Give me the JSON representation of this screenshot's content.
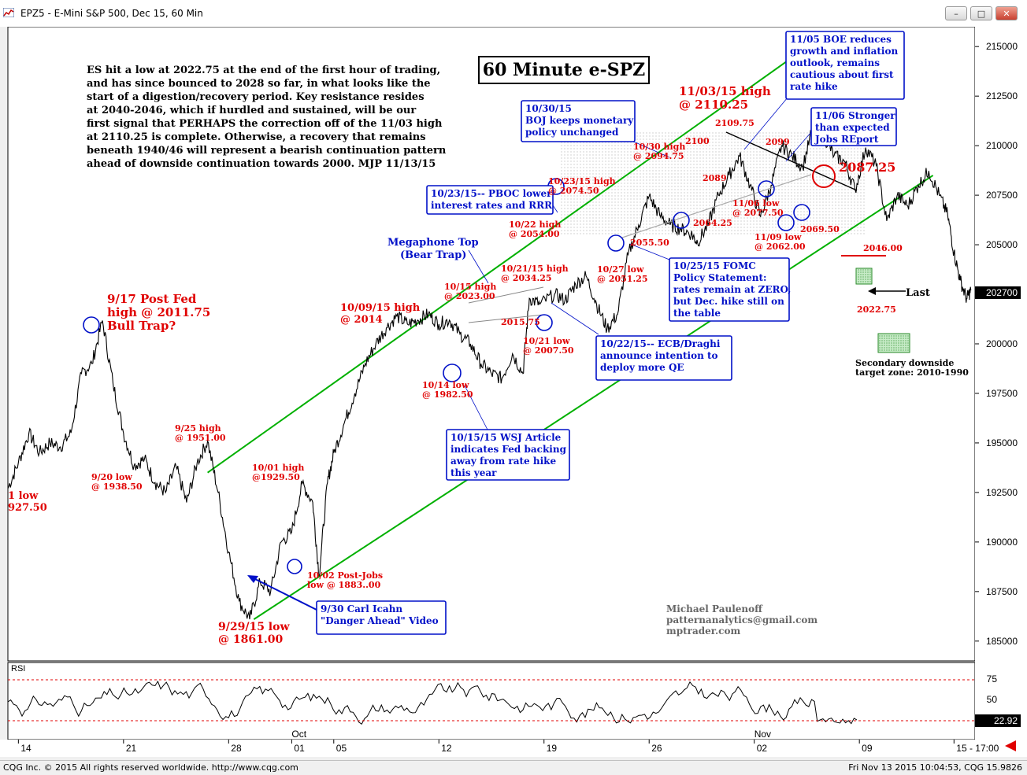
{
  "window": {
    "title": "EPZ5 - E-Mini S&P 500, Dec 15, 60 Min",
    "buttons": [
      "–",
      "□",
      "✕"
    ]
  },
  "status": {
    "left": "CQG Inc. © 2015 All rights reserved worldwide. http://www.cqg.com",
    "right": "Fri Nov 13 2015 10:04:53, CQG 15.9826"
  },
  "chart_data": {
    "type": "line",
    "title": "60 Minute e-SPZ",
    "commentary": [
      "ES hit a low at 2022.75 at the end of the first hour of trading,",
      "and has since bounced to 2028 so far, in what looks like the",
      "start of a digestion/recovery period. Key resistance resides",
      "at 2040-2046, which if hurdled and sustained, will be our",
      "first signal that PERHAPS the correction off of the 11/03 high",
      "at 2110.25 is complete. Otherwise, a recovery that remains",
      "beneath 1940/46 will represent a bearish continuation pattern",
      "ahead of downside continuation towards 2000. MJP 11/13/15"
    ],
    "ylim": [
      1840,
      2160
    ],
    "y_ticks": [
      215000,
      212500,
      210000,
      207500,
      205000,
      202500,
      200000,
      197500,
      195000,
      192500,
      190000,
      187500,
      185000
    ],
    "last_price_label": "202700",
    "x_ticks": [
      {
        "label": "14",
        "x": 0
      },
      {
        "label": "21",
        "x": 5
      },
      {
        "label": "28",
        "x": 10
      },
      {
        "label": "01",
        "x": 13
      },
      {
        "label": "05",
        "x": 15
      },
      {
        "label": "12",
        "x": 20
      },
      {
        "label": "19",
        "x": 25
      },
      {
        "label": "26",
        "x": 30
      },
      {
        "label": "02",
        "x": 35
      },
      {
        "label": "09",
        "x": 40
      },
      {
        "label": "15 - 17:00",
        "x": 44.5
      }
    ],
    "month_labels": [
      {
        "label": "Oct",
        "x": 13
      },
      {
        "label": "Nov",
        "x": 35
      }
    ],
    "x_domain": [
      -0.5,
      45.5
    ],
    "price_series": {
      "name": "",
      "points": [
        [
          -0.5,
          1927
        ],
        [
          0,
          1940
        ],
        [
          0.5,
          1955
        ],
        [
          1,
          1945
        ],
        [
          1.5,
          1950
        ],
        [
          2,
          1948
        ],
        [
          2.5,
          1955
        ],
        [
          3,
          1985
        ],
        [
          3.5,
          1990
        ],
        [
          4,
          2011.75
        ],
        [
          4.5,
          1980
        ],
        [
          5,
          1955
        ],
        [
          5.5,
          1938.5
        ],
        [
          6,
          1942
        ],
        [
          6.5,
          1930
        ],
        [
          7,
          1925
        ],
        [
          7.5,
          1938
        ],
        [
          8,
          1920
        ],
        [
          8.5,
          1940
        ],
        [
          9,
          1951
        ],
        [
          9.5,
          1925
        ],
        [
          10,
          1895
        ],
        [
          10.5,
          1870
        ],
        [
          11,
          1861
        ],
        [
          11.5,
          1880
        ],
        [
          12,
          1875
        ],
        [
          12.5,
          1900
        ],
        [
          13,
          1905
        ],
        [
          13.5,
          1929.5
        ],
        [
          14,
          1920
        ],
        [
          14.3,
          1883
        ],
        [
          14.7,
          1930
        ],
        [
          15,
          1945
        ],
        [
          15.5,
          1960
        ],
        [
          16,
          1975
        ],
        [
          16.5,
          1990
        ],
        [
          17,
          2000
        ],
        [
          17.5,
          2008
        ],
        [
          18,
          2014
        ],
        [
          18.5,
          2010
        ],
        [
          19,
          2012
        ],
        [
          19.5,
          2015
        ],
        [
          20,
          2010
        ],
        [
          20.5,
          2012
        ],
        [
          21,
          2005
        ],
        [
          21.5,
          2000
        ],
        [
          22,
          1990
        ],
        [
          22.5,
          1985
        ],
        [
          23,
          1982.5
        ],
        [
          23.5,
          1995
        ],
        [
          24,
          1985
        ],
        [
          24.3,
          2023
        ],
        [
          24.8,
          2020
        ],
        [
          25.5,
          2025
        ],
        [
          26,
          2022
        ],
        [
          26.5,
          2030
        ],
        [
          27,
          2034.25
        ],
        [
          27.5,
          2020
        ],
        [
          28,
          2007.5
        ],
        [
          28.5,
          2015
        ],
        [
          29,
          2045
        ],
        [
          29.5,
          2060
        ],
        [
          30,
          2074.5
        ],
        [
          30.5,
          2065
        ],
        [
          31,
          2060
        ],
        [
          31.5,
          2058
        ],
        [
          32,
          2055.5
        ],
        [
          32.3,
          2051.25
        ],
        [
          32.8,
          2060
        ],
        [
          33.3,
          2075
        ],
        [
          33.8,
          2085
        ],
        [
          34.3,
          2094.75
        ],
        [
          34.8,
          2080
        ],
        [
          35.3,
          2064.25
        ],
        [
          35.8,
          2080
        ],
        [
          36.3,
          2100
        ],
        [
          36.8,
          2095
        ],
        [
          37.3,
          2089
        ],
        [
          37.8,
          2109.75
        ],
        [
          38.3,
          2105
        ],
        [
          38.8,
          2095
        ],
        [
          39.3,
          2092
        ],
        [
          39.8,
          2077.5
        ],
        [
          40.3,
          2099
        ],
        [
          40.8,
          2090
        ],
        [
          41.3,
          2062
        ],
        [
          41.8,
          2075
        ],
        [
          42.3,
          2069.5
        ],
        [
          42.8,
          2080
        ],
        [
          43.3,
          2087.25
        ],
        [
          43.8,
          2075
        ],
        [
          44.2,
          2065
        ],
        [
          44.5,
          2046
        ],
        [
          44.8,
          2032
        ],
        [
          45.1,
          2022.75
        ],
        [
          45.3,
          2027
        ]
      ]
    },
    "rsi": {
      "label": "RSI",
      "levels": [
        "75",
        "50"
      ],
      "last_value": "22.92",
      "ylim": [
        0,
        100
      ]
    },
    "channel_lines": [
      {
        "name": "upper-channel",
        "from": [
          9,
          1935
        ],
        "to": [
          38.2,
          2155
        ]
      },
      {
        "name": "lower-channel",
        "from": [
          11.2,
          1861
        ],
        "to": [
          43.5,
          2085
        ]
      }
    ],
    "annotations": {
      "blue_boxes": [
        [
          "11/05 BOE reduces",
          "growth and inflation",
          "outlook, remains",
          "cautious about first",
          "rate hike"
        ],
        [
          "10/30/15",
          "BOJ keeps monetary",
          "policy unchanged"
        ],
        [
          "11/06 Stronger",
          "than expected",
          "Jobs REport"
        ],
        [
          "10/23/15-- PBOC lower",
          "interest rates and RRR"
        ],
        [
          "10/25/15 FOMC",
          "Policy Statement:",
          "rates remain at ZERO,",
          "but Dec. hike still on",
          "the table"
        ],
        [
          "10/22/15-- ECB/Draghi",
          "announce intention to",
          "deploy more QE"
        ],
        [
          "10/15/15 WSJ Article",
          "indicates Fed backing",
          "away from rate hike",
          "this year"
        ],
        [
          "9/30 Carl Icahn",
          "\"Danger Ahead\" Video"
        ]
      ],
      "red_labels": [
        [
          "11/03/15 high",
          "@ 2110.25"
        ],
        [
          "9/17 Post Fed",
          "high @ 2011.75",
          "Bull Trap?"
        ],
        [
          "9/29/15 low",
          "@ 1861.00"
        ],
        [
          "10/09/15 high",
          "@ 2014"
        ],
        [
          "1 low",
          "927.50"
        ]
      ],
      "small_red_labels": [
        [
          "2109.75"
        ],
        [
          "2100"
        ],
        [
          "2099"
        ],
        [
          "2089"
        ],
        [
          "10/30 high",
          "@ 2094.75"
        ],
        [
          "10/23/15 high",
          "@ 2074.50"
        ],
        [
          "11/06 low",
          "@ 2077.50"
        ],
        [
          "2064.25"
        ],
        [
          "2055.50"
        ],
        [
          "10/22 high",
          "@ 2054.00"
        ],
        [
          "10/21/15 high",
          "@ 2034.25"
        ],
        [
          "10/15 high",
          "@ 2023.00"
        ],
        [
          "2015.75"
        ],
        [
          "10/21 low",
          "@ 2007.50"
        ],
        [
          "10/14 low",
          "@ 1982.50"
        ],
        [
          "10/27 low",
          "@ 2051.25"
        ],
        [
          "11/09 low",
          "@ 2062.00"
        ],
        [
          "2069.50"
        ],
        [
          "2046.00"
        ],
        [
          "2022.75"
        ],
        [
          "9/25 high",
          "@ 1951.00"
        ],
        [
          "9/20 low",
          "@ 1938.50"
        ],
        [
          "10/01 high",
          "@1929.50"
        ],
        [
          "10/02 Post-Jobs",
          "low @ 1883..00"
        ]
      ],
      "big_red_price": "2087.25",
      "megaphone": [
        "Megaphone Top",
        "(Bear Trap)"
      ],
      "last_label": "Last",
      "target_zone": [
        "Secondary downside",
        "target zone: 2010-1990"
      ],
      "author": [
        "Michael Paulenoff",
        "patternanalytics@gmail.com",
        "mptrader.com"
      ]
    }
  }
}
